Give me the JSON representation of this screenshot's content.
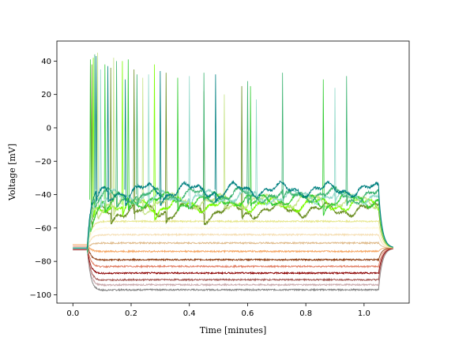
{
  "chart_data": {
    "type": "line",
    "title": "",
    "xlabel": "Time [minutes]",
    "ylabel": "Voltage [mV]",
    "xlim": [
      -0.055,
      1.155
    ],
    "ylim": [
      -105,
      52
    ],
    "xticks": [
      0.0,
      0.2,
      0.4,
      0.6,
      0.8,
      1.0
    ],
    "xtick_labels": [
      "0.0",
      "0.2",
      "0.4",
      "0.6",
      "0.8",
      "1.0"
    ],
    "yticks": [
      -100,
      -80,
      -60,
      -40,
      -20,
      0,
      20,
      40
    ],
    "ytick_labels": [
      "−100",
      "−80",
      "−60",
      "−40",
      "−20",
      "0",
      "20",
      "40"
    ],
    "grid": false,
    "stim_onset_min": 0.05,
    "stim_offset_min": 1.05,
    "series": [
      {
        "color": "#7f7f7f",
        "rest": -73,
        "level": -97,
        "kind": "hyper"
      },
      {
        "color": "#c8a7aa",
        "rest": -73,
        "level": -94,
        "kind": "hyper"
      },
      {
        "color": "#a0534e",
        "rest": -73,
        "level": -91,
        "kind": "hyper"
      },
      {
        "color": "#8b0000",
        "rest": -73,
        "level": -87,
        "kind": "hyper"
      },
      {
        "color": "#e07a5f",
        "rest": -71,
        "level": -83,
        "kind": "hyper"
      },
      {
        "color": "#8b3a0e",
        "rest": -70,
        "level": -79,
        "kind": "hyper"
      },
      {
        "color": "#f4a460",
        "rest": -70,
        "level": -74,
        "kind": "hyper"
      },
      {
        "color": "#deb887",
        "rest": -72,
        "level": -69,
        "kind": "sub"
      },
      {
        "color": "#f5deb3",
        "rest": -72,
        "level": -64,
        "kind": "sub"
      },
      {
        "color": "#fff8dc",
        "rest": -72,
        "level": -60,
        "kind": "sub"
      },
      {
        "color": "#e6e68a",
        "rest": -72,
        "level": -56,
        "kind": "sub"
      },
      {
        "color": "#6b8e23",
        "rest": -72,
        "level": -49,
        "kind": "spiking",
        "spikes_t": [
          0.065,
          0.13,
          0.21,
          0.32,
          0.45,
          0.58
        ],
        "spikes_peak": [
          38,
          36,
          35,
          33,
          22,
          25
        ]
      },
      {
        "color": "#7cfc00",
        "rest": -72,
        "level": -46,
        "kind": "spiking",
        "spikes_t": [
          0.07,
          0.17,
          0.28
        ],
        "spikes_peak": [
          42,
          40,
          38
        ]
      },
      {
        "color": "#c5e384",
        "rest": -72,
        "level": -44,
        "kind": "spiking",
        "spikes_t": [
          0.085,
          0.14,
          0.24,
          0.52
        ],
        "spikes_peak": [
          45,
          42,
          30,
          20
        ]
      },
      {
        "color": "#32cd32",
        "rest": -72,
        "level": -43,
        "kind": "spiking",
        "spikes_t": [
          0.06,
          0.11,
          0.19,
          0.36,
          0.61,
          0.86
        ],
        "spikes_peak": [
          41,
          38,
          41,
          30,
          25,
          29
        ]
      },
      {
        "color": "#90d9c9",
        "rest": -72,
        "level": -41,
        "kind": "spiking",
        "spikes_t": [
          0.095,
          0.26,
          0.4,
          0.63,
          0.9
        ],
        "spikes_peak": [
          35,
          32,
          31,
          17,
          24
        ]
      },
      {
        "color": "#3cb371",
        "rest": -72,
        "level": -40,
        "kind": "spiking",
        "spikes_t": [
          0.075,
          0.15,
          0.22,
          0.45,
          0.6,
          0.72,
          0.94
        ],
        "spikes_peak": [
          44,
          40,
          32,
          33,
          28,
          33,
          31
        ]
      },
      {
        "color": "#008080",
        "rest": -72,
        "level": -37,
        "kind": "spiking",
        "spikes_t": [
          0.08,
          0.12,
          0.18,
          0.3,
          0.49
        ],
        "spikes_peak": [
          43,
          37,
          29,
          34,
          32
        ]
      }
    ]
  }
}
